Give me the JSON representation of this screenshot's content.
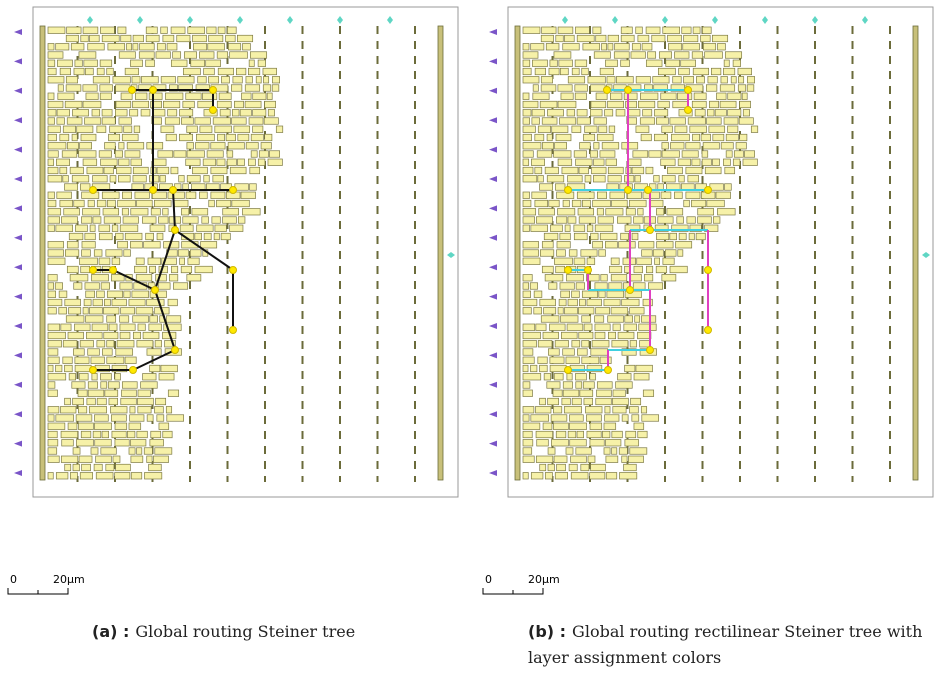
{
  "panels": [
    {
      "label": "(a) :",
      "caption": "Global routing Steiner tree",
      "scale": {
        "start": "0",
        "length": "20µm"
      }
    },
    {
      "label": "(b) :",
      "caption": "Global routing rectilinear Steiner tree with layer assignment colors",
      "scale": {
        "start": "0",
        "length": "20µm"
      }
    }
  ]
}
